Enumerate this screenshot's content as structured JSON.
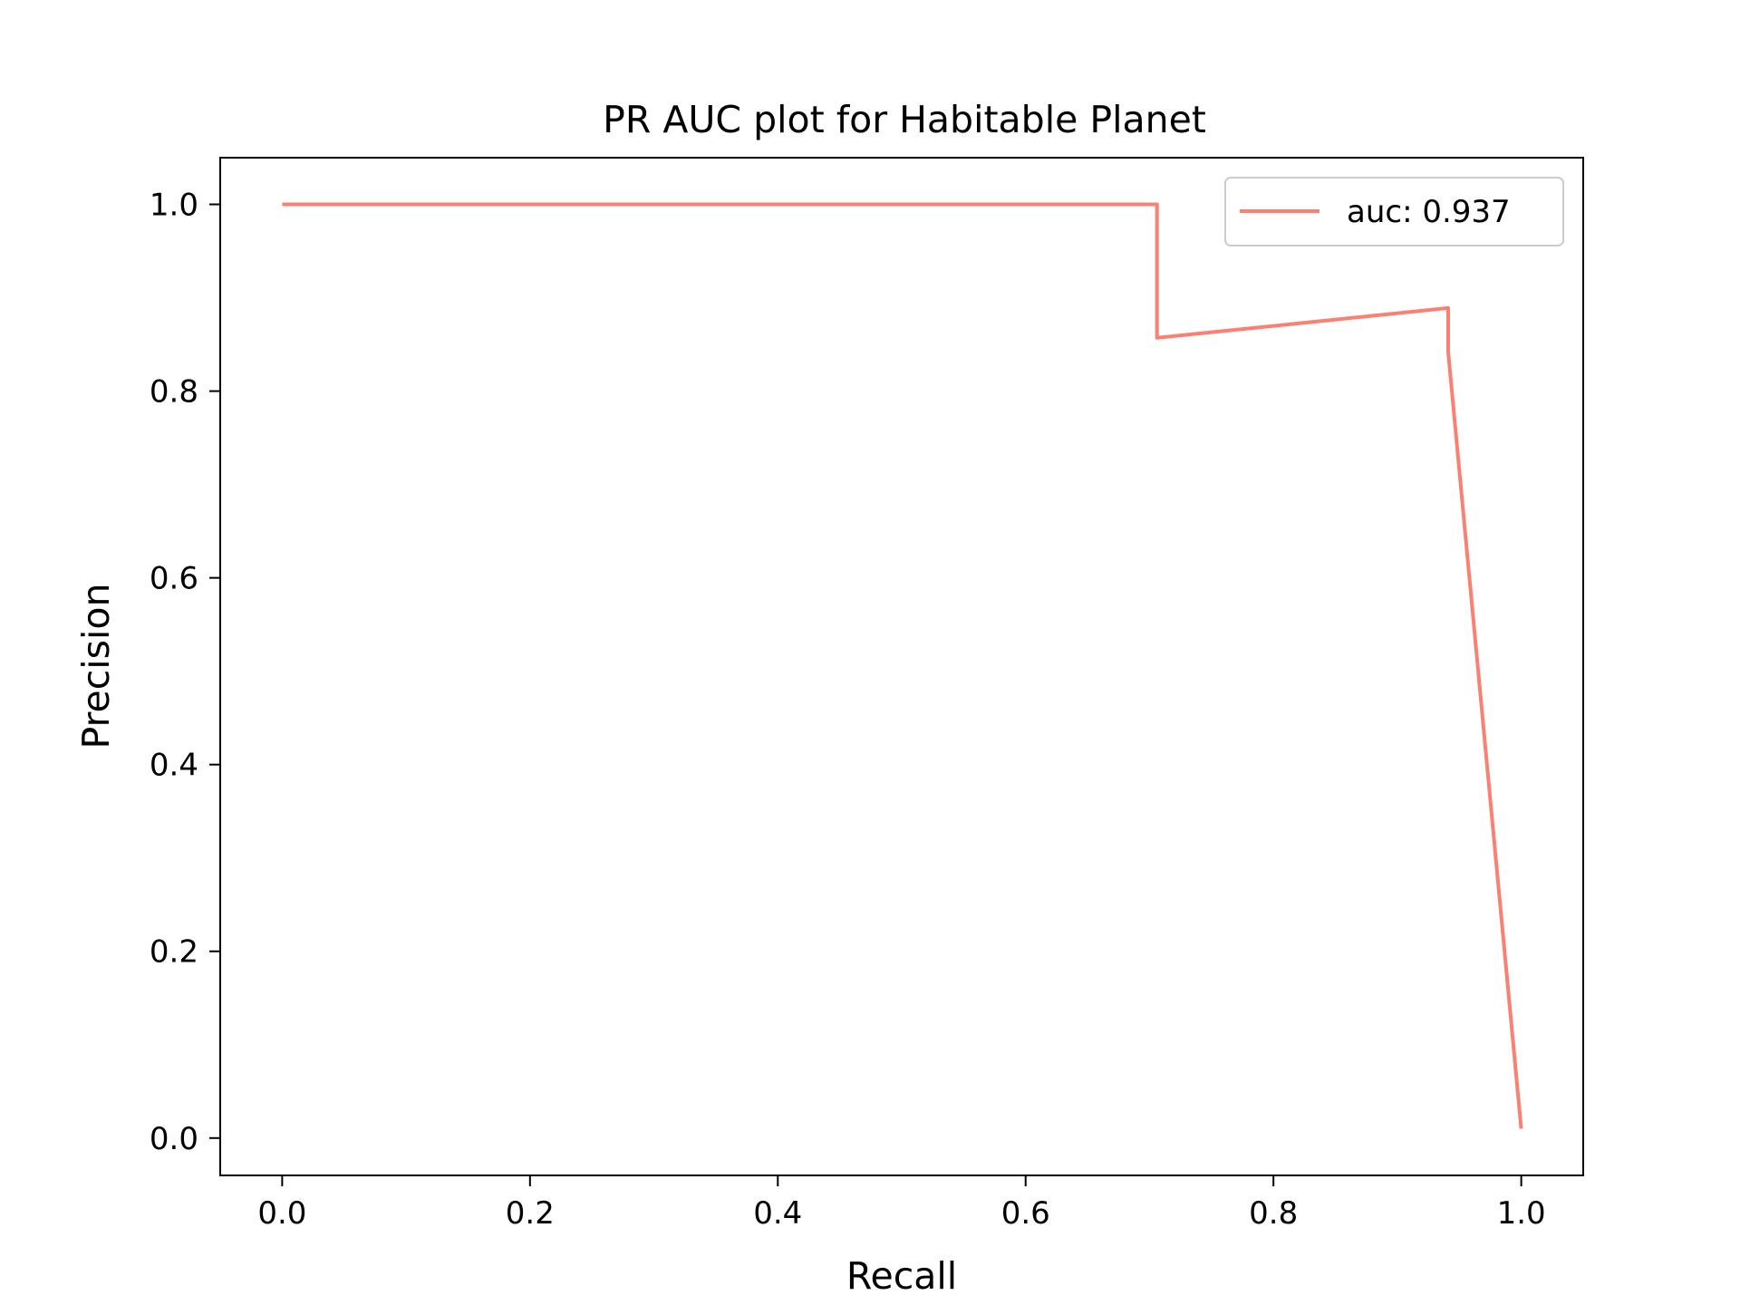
{
  "chart_data": {
    "type": "line",
    "title": "PR AUC plot for Habitable Planet",
    "xlabel": "Recall",
    "ylabel": "Precision",
    "xlim": [
      -0.05,
      1.05
    ],
    "ylim": [
      -0.04,
      1.05
    ],
    "xticks": [
      0.0,
      0.2,
      0.4,
      0.6,
      0.8,
      1.0
    ],
    "xtick_labels": [
      "0.0",
      "0.2",
      "0.4",
      "0.6",
      "0.8",
      "1.0"
    ],
    "yticks": [
      0.0,
      0.2,
      0.4,
      0.6,
      0.8,
      1.0
    ],
    "ytick_labels": [
      "0.0",
      "0.2",
      "0.4",
      "0.6",
      "0.8",
      "1.0"
    ],
    "grid": false,
    "legend_position": "upper right",
    "series": [
      {
        "name": "auc: 0.937",
        "color": "#fa8072",
        "x": [
          0.0,
          0.706,
          0.706,
          0.941,
          0.941,
          1.0
        ],
        "y": [
          1.0,
          1.0,
          0.857,
          0.889,
          0.842,
          0.01
        ]
      }
    ]
  }
}
